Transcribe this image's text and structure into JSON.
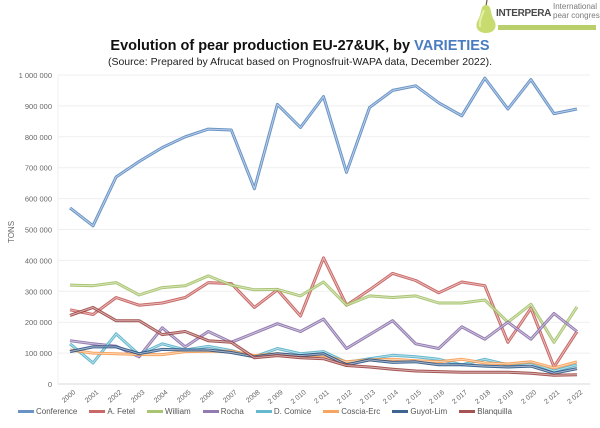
{
  "logo": {
    "brand": "INTERPERA",
    "tagline_line1": "International",
    "tagline_line2": "pear congress"
  },
  "chart_data": {
    "type": "line",
    "title": "Evolution of pear production EU-27&UK, by",
    "title_accent": "VARIETIES",
    "subtitle": "(Source: Prepared by Afrucat based on Prognosfruit-WAPA data, December 2022).",
    "xlabel": "",
    "ylabel": "TONS",
    "ylim": [
      0,
      1000000
    ],
    "yticks": [
      0,
      100000,
      200000,
      300000,
      400000,
      500000,
      600000,
      700000,
      800000,
      900000,
      1000000
    ],
    "ytick_labels": [
      "0",
      "100 000",
      "200 000",
      "300 000",
      "400 000",
      "500 000",
      "600 000",
      "700 000",
      "800 000",
      "900 000",
      "1 000 000"
    ],
    "grid": true,
    "legend_position": "bottom",
    "categories": [
      "2000",
      "2001",
      "2002",
      "2003",
      "2004",
      "2005",
      "2006",
      "2007",
      "2008",
      "2 009",
      "2 010",
      "2 011",
      "2 012",
      "2 013",
      "2 014",
      "2 015",
      "2 016",
      "2 017",
      "2 018",
      "2 019",
      "2 020",
      "2 021",
      "2 022"
    ],
    "series": [
      {
        "name": "Conference",
        "color": "#4f81bd",
        "values": [
          570000,
          512000,
          670000,
          720000,
          765000,
          800000,
          825000,
          822000,
          632000,
          905000,
          830000,
          930000,
          685000,
          895000,
          950000,
          965000,
          910000,
          868000,
          990000,
          890000,
          985000,
          875000,
          890000
        ]
      },
      {
        "name": "A. Fetel",
        "color": "#c0504d",
        "values": [
          240000,
          225000,
          280000,
          255000,
          262000,
          280000,
          328000,
          325000,
          248000,
          305000,
          220000,
          408000,
          255000,
          305000,
          358000,
          335000,
          295000,
          330000,
          318000,
          135000,
          245000,
          55000,
          170000
        ]
      },
      {
        "name": "William",
        "color": "#9bbb59",
        "values": [
          320000,
          318000,
          328000,
          288000,
          312000,
          318000,
          350000,
          320000,
          305000,
          306000,
          285000,
          330000,
          255000,
          285000,
          280000,
          285000,
          262000,
          262000,
          272000,
          200000,
          258000,
          135000,
          250000
        ]
      },
      {
        "name": "Rocha",
        "color": "#8064a2",
        "values": [
          140000,
          130000,
          122000,
          88000,
          182000,
          120000,
          170000,
          135000,
          165000,
          195000,
          170000,
          210000,
          115000,
          160000,
          205000,
          130000,
          115000,
          185000,
          145000,
          200000,
          145000,
          228000,
          170000
        ]
      },
      {
        "name": "D. Comice",
        "color": "#4bacc6",
        "values": [
          130000,
          68000,
          162000,
          95000,
          130000,
          110000,
          122000,
          108000,
          88000,
          115000,
          98000,
          105000,
          70000,
          82000,
          93000,
          88000,
          80000,
          62000,
          80000,
          62000,
          70000,
          42000,
          62000
        ]
      },
      {
        "name": "Coscia-Erc",
        "color": "#f79646",
        "values": [
          110000,
          100000,
          98000,
          95000,
          95000,
          105000,
          106000,
          106000,
          92000,
          98000,
          90000,
          93000,
          72000,
          78000,
          80000,
          75000,
          72000,
          80000,
          68000,
          65000,
          72000,
          52000,
          72000
        ]
      },
      {
        "name": "Guyot-Lim",
        "color": "#1f497d",
        "values": [
          105000,
          120000,
          120000,
          98000,
          112000,
          110000,
          110000,
          102000,
          88000,
          98000,
          92000,
          98000,
          62000,
          78000,
          70000,
          72000,
          62000,
          62000,
          58000,
          55000,
          58000,
          35000,
          50000
        ]
      },
      {
        "name": "Blanquilla",
        "color": "#953735",
        "values": [
          222000,
          248000,
          205000,
          205000,
          160000,
          170000,
          140000,
          135000,
          85000,
          92000,
          85000,
          82000,
          60000,
          55000,
          48000,
          42000,
          40000,
          38000,
          38000,
          38000,
          35000,
          28000,
          30000
        ]
      }
    ]
  }
}
